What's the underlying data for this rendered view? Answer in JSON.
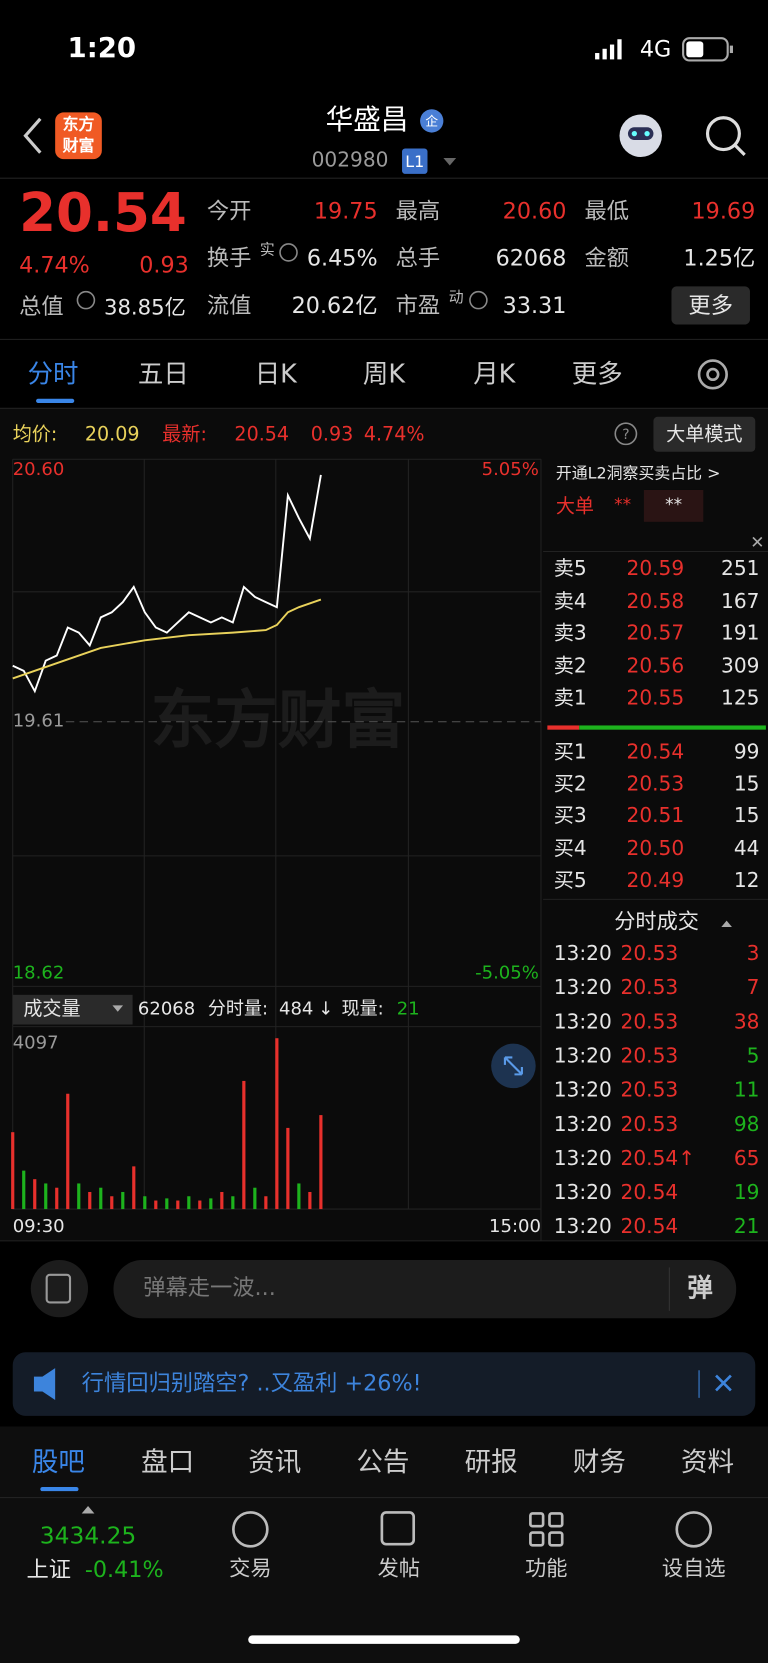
{
  "status": {
    "time": "1:20",
    "network": "4G"
  },
  "header": {
    "logo": [
      "东方",
      "财富"
    ],
    "name": "华盛昌",
    "badge": "企",
    "code": "002980",
    "level": "L1"
  },
  "quote": {
    "price": "20.54",
    "pct": "4.74%",
    "change": "0.93",
    "total_value": {
      "label": "总值",
      "value": "38.85亿"
    },
    "fields": [
      [
        {
          "label": "今开",
          "value": "19.75"
        },
        {
          "label": "最高",
          "value": "20.60"
        },
        {
          "label": "最低",
          "value": "19.69"
        }
      ],
      [
        {
          "label": "换手",
          "sup": "实",
          "value": "6.45%"
        },
        {
          "label": "总手",
          "value": "62068"
        },
        {
          "label": "金额",
          "value": "1.25亿"
        }
      ],
      [
        {
          "label": "流值",
          "value": "20.62亿"
        },
        {
          "label": "市盈",
          "sup": "动",
          "value": "33.31"
        }
      ]
    ],
    "more": "更多"
  },
  "chart_tabs": [
    "分时",
    "五日",
    "日K",
    "周K",
    "月K",
    "更多"
  ],
  "info": {
    "avg_label": "均价:",
    "avg": "20.09",
    "latest_label": "最新:",
    "latest": "20.54",
    "change": "0.93",
    "pct": "4.74%",
    "mode": "大单模式"
  },
  "watermark": "东方财富",
  "chart_data": [
    {
      "type": "line",
      "xlim": [
        0,
        240
      ],
      "ylim": [
        18.62,
        20.6
      ],
      "yticks": [
        {
          "value": 20.6,
          "label": "20.60"
        },
        {
          "value": 19.61,
          "label": "19.61"
        },
        {
          "value": 18.62,
          "label": "18.62"
        }
      ],
      "y2lim": [
        -5.05,
        5.05
      ],
      "y2ticks": [
        {
          "value": 5.05,
          "label": "5.05%"
        },
        {
          "value": -5.05,
          "label": "-5.05%"
        }
      ],
      "series": [
        {
          "color": "#ffffff",
          "x": [
            0,
            5,
            10,
            15,
            20,
            25,
            30,
            35,
            40,
            45,
            50,
            55,
            60,
            65,
            70,
            75,
            80,
            85,
            90,
            95,
            100,
            105,
            110,
            115,
            120,
            125,
            130,
            135,
            140
          ],
          "values": [
            19.83,
            19.81,
            19.73,
            19.85,
            19.87,
            19.98,
            19.96,
            19.91,
            20.02,
            20.04,
            20.08,
            20.14,
            20.04,
            19.98,
            19.96,
            20.0,
            20.04,
            20.02,
            20.0,
            20.02,
            20.0,
            20.14,
            20.1,
            20.08,
            20.06,
            20.5,
            20.41,
            20.33,
            20.58
          ]
        },
        {
          "color": "#e9d25b",
          "x": [
            0,
            20,
            40,
            60,
            80,
            100,
            115,
            120,
            125,
            130,
            140
          ],
          "values": [
            19.78,
            19.84,
            19.9,
            19.93,
            19.95,
            19.96,
            19.97,
            19.99,
            20.04,
            20.06,
            20.09
          ]
        }
      ]
    },
    {
      "type": "bar",
      "xlim": [
        0,
        240
      ],
      "ylim": [
        0,
        4097
      ],
      "yticks": [
        4097
      ],
      "xticks": [
        {
          "value": 0,
          "label": "09:30"
        },
        {
          "value": 240,
          "label": "15:00"
        }
      ],
      "x": [
        0,
        5,
        10,
        15,
        20,
        25,
        30,
        35,
        40,
        45,
        50,
        55,
        60,
        65,
        70,
        75,
        80,
        85,
        90,
        95,
        100,
        105,
        110,
        115,
        120,
        125,
        130,
        135,
        140
      ],
      "values": [
        1800,
        900,
        700,
        600,
        500,
        2700,
        600,
        400,
        500,
        300,
        400,
        1000,
        300,
        200,
        250,
        200,
        300,
        200,
        250,
        400,
        300,
        3000,
        500,
        300,
        4000,
        1900,
        600,
        400,
        2200
      ],
      "colors": [
        "#e8302c",
        "#1db31d",
        "#e8302c",
        "#1db31d",
        "#e8302c",
        "#e8302c",
        "#1db31d",
        "#e8302c",
        "#1db31d",
        "#e8302c",
        "#1db31d",
        "#e8302c",
        "#1db31d",
        "#e8302c",
        "#1db31d",
        "#e8302c",
        "#1db31d",
        "#e8302c",
        "#1db31d",
        "#e8302c",
        "#1db31d",
        "#e8302c",
        "#1db31d",
        "#e8302c",
        "#e8302c",
        "#e8302c",
        "#1db31d",
        "#e8302c",
        "#e8302c"
      ]
    }
  ],
  "volume_info": {
    "label": "成交量",
    "total": "62068",
    "period_label": "分时量:",
    "period": "484",
    "arrow": "↓",
    "current_label": "现量:",
    "current": "21"
  },
  "l2": {
    "text": "开通L2洞察买卖占比 >",
    "label": "大单",
    "value1": "**",
    "value2": "**"
  },
  "order_book": {
    "asks": [
      {
        "label": "卖5",
        "price": "20.59",
        "volume": "251"
      },
      {
        "label": "卖4",
        "price": "20.58",
        "volume": "167"
      },
      {
        "label": "卖3",
        "price": "20.57",
        "volume": "191"
      },
      {
        "label": "卖2",
        "price": "20.56",
        "volume": "309"
      },
      {
        "label": "卖1",
        "price": "20.55",
        "volume": "125"
      }
    ],
    "bids": [
      {
        "label": "买1",
        "price": "20.54",
        "volume": "99"
      },
      {
        "label": "买2",
        "price": "20.53",
        "volume": "15"
      },
      {
        "label": "买3",
        "price": "20.51",
        "volume": "15"
      },
      {
        "label": "买4",
        "price": "20.50",
        "volume": "44"
      },
      {
        "label": "买5",
        "price": "20.49",
        "volume": "12"
      }
    ]
  },
  "trades": {
    "title": "分时成交",
    "rows": [
      {
        "time": "13:20",
        "price": "20.53",
        "volume": "3",
        "color": "#e8302c"
      },
      {
        "time": "13:20",
        "price": "20.53",
        "volume": "7",
        "color": "#e8302c"
      },
      {
        "time": "13:20",
        "price": "20.53",
        "volume": "38",
        "color": "#e8302c"
      },
      {
        "time": "13:20",
        "price": "20.53",
        "volume": "5",
        "color": "#1db31d"
      },
      {
        "time": "13:20",
        "price": "20.53",
        "volume": "11",
        "color": "#1db31d"
      },
      {
        "time": "13:20",
        "price": "20.53",
        "volume": "98",
        "color": "#1db31d"
      },
      {
        "time": "13:20",
        "price": "20.54↑",
        "volume": "65",
        "color": "#e8302c"
      },
      {
        "time": "13:20",
        "price": "20.54",
        "volume": "19",
        "color": "#1db31d"
      },
      {
        "time": "13:20",
        "price": "20.54",
        "volume": "21",
        "color": "#1db31d"
      }
    ]
  },
  "danmu": {
    "placeholder": "弹幕走一波...",
    "button": "弹"
  },
  "banner": "行情回归别踏空? ..又盈利 +26%!",
  "tabs": [
    "股吧",
    "盘口",
    "资讯",
    "公告",
    "研报",
    "财务",
    "资料"
  ],
  "footer": {
    "index_value": "3434.25",
    "index_name": "上证",
    "index_change": "-0.41%",
    "actions": [
      "交易",
      "发帖",
      "功能",
      "设自选"
    ]
  }
}
